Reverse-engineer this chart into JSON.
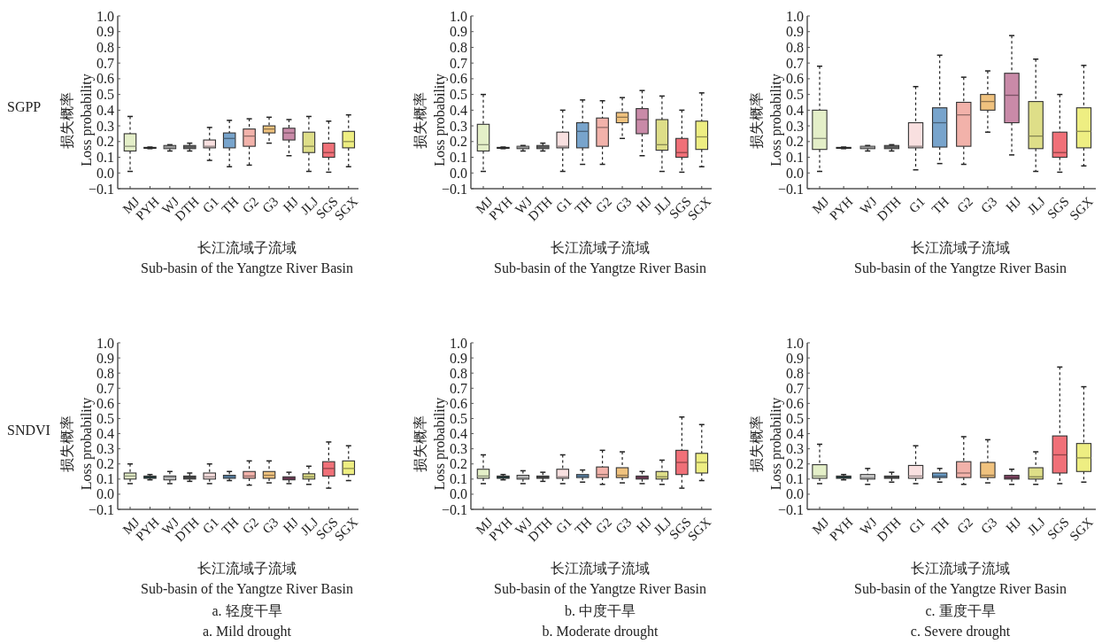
{
  "chart_data": [
    {
      "type": "box",
      "subtitle": "SGPP",
      "ylabel": "损失概率\nLoss probability",
      "xlabel": "长江流域子流域\nSub-basin of the Yangtze River Basin",
      "categories": [
        "MJ",
        "PYH",
        "WJ",
        "DTH",
        "G1",
        "TH",
        "G2",
        "G3",
        "HJ",
        "JLJ",
        "SGS",
        "SGX"
      ],
      "colors": [
        "#e4efc8",
        "#3c3c3c",
        "#cfcfcf",
        "#7d7d7d",
        "#f9e0e0",
        "#78a4cc",
        "#f2b2aa",
        "#f0c27e",
        "#c98aa8",
        "#dede88",
        "#f07078",
        "#eeee82"
      ],
      "ylim": [
        -0.1,
        1.0
      ],
      "yticks": [
        {
          "value": -0.1,
          "label": "−0.1"
        },
        {
          "value": 0,
          "label": "0.0"
        },
        0.1,
        0.2,
        0.3,
        0.4,
        0.5,
        0.6,
        0.7,
        0.8,
        0.9,
        {
          "value": 1,
          "label": "1.0"
        }
      ],
      "boxes": [
        {
          "low": 0.01,
          "q1": 0.14,
          "median": 0.17,
          "q3": 0.25,
          "high": 0.36
        },
        {
          "low": 0.155,
          "q1": 0.158,
          "median": 0.16,
          "q3": 0.163,
          "high": 0.165
        },
        {
          "low": 0.14,
          "q1": 0.155,
          "median": 0.165,
          "q3": 0.175,
          "high": 0.18
        },
        {
          "low": 0.14,
          "q1": 0.155,
          "median": 0.165,
          "q3": 0.175,
          "high": 0.19
        },
        {
          "low": 0.08,
          "q1": 0.16,
          "median": 0.17,
          "q3": 0.21,
          "high": 0.29
        },
        {
          "low": 0.04,
          "q1": 0.16,
          "median": 0.22,
          "q3": 0.255,
          "high": 0.335
        },
        {
          "low": 0.05,
          "q1": 0.17,
          "median": 0.235,
          "q3": 0.28,
          "high": 0.345
        },
        {
          "low": 0.19,
          "q1": 0.255,
          "median": 0.28,
          "q3": 0.3,
          "high": 0.355
        },
        {
          "low": 0.11,
          "q1": 0.21,
          "median": 0.255,
          "q3": 0.285,
          "high": 0.34
        },
        {
          "low": 0.01,
          "q1": 0.13,
          "median": 0.17,
          "q3": 0.26,
          "high": 0.36
        },
        {
          "low": 0.005,
          "q1": 0.1,
          "median": 0.13,
          "q3": 0.19,
          "high": 0.33
        },
        {
          "low": 0.04,
          "q1": 0.16,
          "median": 0.2,
          "q3": 0.265,
          "high": 0.37
        }
      ]
    },
    {
      "type": "box",
      "ylabel": "损失概率\nLoss probability",
      "xlabel": "长江流域子流域\nSub-basin of the Yangtze River Basin",
      "categories": [
        "MJ",
        "PYH",
        "WJ",
        "DTH",
        "G1",
        "TH",
        "G2",
        "G3",
        "HJ",
        "JLJ",
        "SGS",
        "SGX"
      ],
      "colors": [
        "#e4efc8",
        "#3c3c3c",
        "#cfcfcf",
        "#7d7d7d",
        "#f9e0e0",
        "#78a4cc",
        "#f2b2aa",
        "#f0c27e",
        "#c98aa8",
        "#dede88",
        "#f07078",
        "#eeee82"
      ],
      "ylim": [
        -0.1,
        1.0
      ],
      "yticks": [
        {
          "value": -0.1,
          "label": "−0.1"
        },
        {
          "value": 0,
          "label": "0.0"
        },
        0.1,
        0.2,
        0.3,
        0.4,
        0.5,
        0.6,
        0.7,
        0.8,
        0.9,
        {
          "value": 1,
          "label": "1.0"
        }
      ],
      "boxes": [
        {
          "low": 0.01,
          "q1": 0.14,
          "median": 0.18,
          "q3": 0.31,
          "high": 0.5
        },
        {
          "low": 0.155,
          "q1": 0.158,
          "median": 0.16,
          "q3": 0.163,
          "high": 0.165
        },
        {
          "low": 0.14,
          "q1": 0.155,
          "median": 0.165,
          "q3": 0.17,
          "high": 0.175
        },
        {
          "low": 0.14,
          "q1": 0.155,
          "median": 0.165,
          "q3": 0.175,
          "high": 0.19
        },
        {
          "low": 0.01,
          "q1": 0.16,
          "median": 0.17,
          "q3": 0.26,
          "high": 0.4
        },
        {
          "low": 0.055,
          "q1": 0.16,
          "median": 0.265,
          "q3": 0.32,
          "high": 0.465
        },
        {
          "low": 0.055,
          "q1": 0.17,
          "median": 0.29,
          "q3": 0.35,
          "high": 0.46
        },
        {
          "low": 0.22,
          "q1": 0.32,
          "median": 0.355,
          "q3": 0.385,
          "high": 0.48
        },
        {
          "low": 0.11,
          "q1": 0.25,
          "median": 0.34,
          "q3": 0.41,
          "high": 0.525
        },
        {
          "low": 0.01,
          "q1": 0.145,
          "median": 0.18,
          "q3": 0.34,
          "high": 0.49
        },
        {
          "low": 0.005,
          "q1": 0.1,
          "median": 0.13,
          "q3": 0.22,
          "high": 0.4
        },
        {
          "low": 0.04,
          "q1": 0.15,
          "median": 0.23,
          "q3": 0.33,
          "high": 0.51
        }
      ]
    },
    {
      "type": "box",
      "ylabel": "损失概率\nLoss probability",
      "xlabel": "长江流域子流域\nSub-basin of the Yangtze River Basin",
      "categories": [
        "MJ",
        "PYH",
        "WJ",
        "DTH",
        "G1",
        "TH",
        "G2",
        "G3",
        "HJ",
        "JLJ",
        "SGS",
        "SGX"
      ],
      "colors": [
        "#e4efc8",
        "#3c3c3c",
        "#cfcfcf",
        "#7d7d7d",
        "#f9e0e0",
        "#78a4cc",
        "#f2b2aa",
        "#f0c27e",
        "#c98aa8",
        "#dede88",
        "#f07078",
        "#eeee82"
      ],
      "ylim": [
        -0.1,
        1.0
      ],
      "yticks": [
        {
          "value": -0.1,
          "label": "−0.1"
        },
        {
          "value": 0,
          "label": "0.0"
        },
        0.1,
        0.2,
        0.3,
        0.4,
        0.5,
        0.6,
        0.7,
        0.8,
        0.9,
        {
          "value": 1,
          "label": "1.0"
        }
      ],
      "boxes": [
        {
          "low": 0.01,
          "q1": 0.15,
          "median": 0.22,
          "q3": 0.4,
          "high": 0.68
        },
        {
          "low": 0.155,
          "q1": 0.158,
          "median": 0.16,
          "q3": 0.163,
          "high": 0.165
        },
        {
          "low": 0.14,
          "q1": 0.155,
          "median": 0.165,
          "q3": 0.17,
          "high": 0.175
        },
        {
          "low": 0.14,
          "q1": 0.155,
          "median": 0.165,
          "q3": 0.175,
          "high": 0.18
        },
        {
          "low": 0.02,
          "q1": 0.16,
          "median": 0.17,
          "q3": 0.32,
          "high": 0.55
        },
        {
          "low": 0.06,
          "q1": 0.165,
          "median": 0.32,
          "q3": 0.415,
          "high": 0.75
        },
        {
          "low": 0.055,
          "q1": 0.17,
          "median": 0.37,
          "q3": 0.45,
          "high": 0.61
        },
        {
          "low": 0.26,
          "q1": 0.4,
          "median": 0.455,
          "q3": 0.5,
          "high": 0.65
        },
        {
          "low": 0.115,
          "q1": 0.32,
          "median": 0.495,
          "q3": 0.635,
          "high": 0.875
        },
        {
          "low": 0.01,
          "q1": 0.155,
          "median": 0.235,
          "q3": 0.455,
          "high": 0.725
        },
        {
          "low": 0.005,
          "q1": 0.1,
          "median": 0.13,
          "q3": 0.26,
          "high": 0.5
        },
        {
          "low": 0.045,
          "q1": 0.16,
          "median": 0.265,
          "q3": 0.415,
          "high": 0.685
        }
      ]
    },
    {
      "type": "box",
      "subtitle": "SNDVI",
      "ylabel": "损失概率\nLoss probability",
      "xlabel": "长江流域子流域\nSub-basin of the Yangtze River Basin",
      "annotations": [
        "a. 轻度干旱",
        "a. Mild drought"
      ],
      "categories": [
        "MJ",
        "PYH",
        "WJ",
        "DTH",
        "G1",
        "TH",
        "G2",
        "G3",
        "HJ",
        "JLJ",
        "SGS",
        "SGX"
      ],
      "colors": [
        "#e4efc8",
        "#2f4a4a",
        "#d8d8d8",
        "#5a5a5a",
        "#f9e0e0",
        "#6ea0cc",
        "#f2b2aa",
        "#f0c27e",
        "#8a4a6a",
        "#dede88",
        "#f07078",
        "#eeee82"
      ],
      "ylim": [
        -0.1,
        1.0
      ],
      "yticks": [
        {
          "value": -0.1,
          "label": "−0.1"
        },
        {
          "value": 0,
          "label": "0.0"
        },
        0.1,
        0.2,
        0.3,
        0.4,
        0.5,
        0.6,
        0.7,
        0.8,
        0.9,
        {
          "value": 1,
          "label": "1.0"
        }
      ],
      "boxes": [
        {
          "low": 0.07,
          "q1": 0.1,
          "median": 0.12,
          "q3": 0.14,
          "high": 0.2
        },
        {
          "low": 0.095,
          "q1": 0.105,
          "median": 0.11,
          "q3": 0.12,
          "high": 0.13
        },
        {
          "low": 0.07,
          "q1": 0.095,
          "median": 0.11,
          "q3": 0.12,
          "high": 0.15
        },
        {
          "low": 0.085,
          "q1": 0.1,
          "median": 0.11,
          "q3": 0.12,
          "high": 0.14
        },
        {
          "low": 0.07,
          "q1": 0.1,
          "median": 0.115,
          "q3": 0.14,
          "high": 0.2
        },
        {
          "low": 0.09,
          "q1": 0.105,
          "median": 0.115,
          "q3": 0.125,
          "high": 0.15
        },
        {
          "low": 0.06,
          "q1": 0.105,
          "median": 0.12,
          "q3": 0.15,
          "high": 0.22
        },
        {
          "low": 0.075,
          "q1": 0.105,
          "median": 0.125,
          "q3": 0.15,
          "high": 0.22
        },
        {
          "low": 0.07,
          "q1": 0.095,
          "median": 0.105,
          "q3": 0.115,
          "high": 0.145
        },
        {
          "low": 0.065,
          "q1": 0.1,
          "median": 0.115,
          "q3": 0.135,
          "high": 0.185
        },
        {
          "low": 0.04,
          "q1": 0.12,
          "median": 0.17,
          "q3": 0.215,
          "high": 0.345
        },
        {
          "low": 0.09,
          "q1": 0.13,
          "median": 0.17,
          "q3": 0.22,
          "high": 0.32
        }
      ]
    },
    {
      "type": "box",
      "ylabel": "损失概率\nLoss probability",
      "xlabel": "长江流域子流域\nSub-basin of the Yangtze River Basin",
      "annotations": [
        "b. 中度干旱",
        "b. Moderate drought"
      ],
      "categories": [
        "MJ",
        "PYH",
        "WJ",
        "DTH",
        "G1",
        "TH",
        "G2",
        "G3",
        "HJ",
        "JLJ",
        "SGS",
        "SGX"
      ],
      "colors": [
        "#e4efc8",
        "#2f4a4a",
        "#d8d8d8",
        "#5a5a5a",
        "#f9e0e0",
        "#6ea0cc",
        "#f2b2aa",
        "#f0c27e",
        "#8a4a6a",
        "#dede88",
        "#f07078",
        "#eeee82"
      ],
      "ylim": [
        -0.1,
        1.0
      ],
      "yticks": [
        {
          "value": -0.1,
          "label": "−0.1"
        },
        {
          "value": 0,
          "label": "0.0"
        },
        0.1,
        0.2,
        0.3,
        0.4,
        0.5,
        0.6,
        0.7,
        0.8,
        0.9,
        {
          "value": 1,
          "label": "1.0"
        }
      ],
      "boxes": [
        {
          "low": 0.07,
          "q1": 0.105,
          "median": 0.12,
          "q3": 0.165,
          "high": 0.26
        },
        {
          "low": 0.095,
          "q1": 0.105,
          "median": 0.11,
          "q3": 0.12,
          "high": 0.13
        },
        {
          "low": 0.07,
          "q1": 0.1,
          "median": 0.11,
          "q3": 0.125,
          "high": 0.155
        },
        {
          "low": 0.085,
          "q1": 0.105,
          "median": 0.11,
          "q3": 0.12,
          "high": 0.145
        },
        {
          "low": 0.07,
          "q1": 0.105,
          "median": 0.115,
          "q3": 0.165,
          "high": 0.26
        },
        {
          "low": 0.08,
          "q1": 0.11,
          "median": 0.12,
          "q3": 0.13,
          "high": 0.16
        },
        {
          "low": 0.065,
          "q1": 0.11,
          "median": 0.13,
          "q3": 0.18,
          "high": 0.29
        },
        {
          "low": 0.075,
          "q1": 0.11,
          "median": 0.125,
          "q3": 0.175,
          "high": 0.28
        },
        {
          "low": 0.07,
          "q1": 0.1,
          "median": 0.11,
          "q3": 0.12,
          "high": 0.15
        },
        {
          "low": 0.065,
          "q1": 0.1,
          "median": 0.115,
          "q3": 0.15,
          "high": 0.225
        },
        {
          "low": 0.04,
          "q1": 0.13,
          "median": 0.21,
          "q3": 0.29,
          "high": 0.51
        },
        {
          "low": 0.09,
          "q1": 0.14,
          "median": 0.21,
          "q3": 0.27,
          "high": 0.46
        }
      ]
    },
    {
      "type": "box",
      "ylabel": "损失概率\nLoss probability",
      "xlabel": "长江流域子流域\nSub-basin of the Yangtze River Basin",
      "annotations": [
        "c. 重度干旱",
        "c. Severe drought"
      ],
      "categories": [
        "MJ",
        "PYH",
        "WJ",
        "DTH",
        "G1",
        "TH",
        "G2",
        "G3",
        "HJ",
        "JLJ",
        "SGS",
        "SGX"
      ],
      "colors": [
        "#e4efc8",
        "#2f4a4a",
        "#d8d8d8",
        "#5a5a5a",
        "#f9e0e0",
        "#6ea0cc",
        "#f2b2aa",
        "#f0c27e",
        "#8a4a6a",
        "#dede88",
        "#f07078",
        "#eeee82"
      ],
      "ylim": [
        -0.1,
        1.0
      ],
      "yticks": [
        {
          "value": -0.1,
          "label": "−0.1"
        },
        {
          "value": 0,
          "label": "0.0"
        },
        0.1,
        0.2,
        0.3,
        0.4,
        0.5,
        0.6,
        0.7,
        0.8,
        0.9,
        {
          "value": 1,
          "label": "1.0"
        }
      ],
      "boxes": [
        {
          "low": 0.07,
          "q1": 0.105,
          "median": 0.12,
          "q3": 0.195,
          "high": 0.33
        },
        {
          "low": 0.095,
          "q1": 0.105,
          "median": 0.11,
          "q3": 0.12,
          "high": 0.13
        },
        {
          "low": 0.065,
          "q1": 0.1,
          "median": 0.11,
          "q3": 0.13,
          "high": 0.17
        },
        {
          "low": 0.08,
          "q1": 0.105,
          "median": 0.11,
          "q3": 0.12,
          "high": 0.145
        },
        {
          "low": 0.07,
          "q1": 0.105,
          "median": 0.12,
          "q3": 0.19,
          "high": 0.32
        },
        {
          "low": 0.08,
          "q1": 0.11,
          "median": 0.12,
          "q3": 0.14,
          "high": 0.17
        },
        {
          "low": 0.065,
          "q1": 0.11,
          "median": 0.14,
          "q3": 0.215,
          "high": 0.38
        },
        {
          "low": 0.075,
          "q1": 0.11,
          "median": 0.125,
          "q3": 0.21,
          "high": 0.36
        },
        {
          "low": 0.065,
          "q1": 0.1,
          "median": 0.11,
          "q3": 0.125,
          "high": 0.165
        },
        {
          "low": 0.065,
          "q1": 0.1,
          "median": 0.115,
          "q3": 0.175,
          "high": 0.28
        },
        {
          "low": 0.07,
          "q1": 0.14,
          "median": 0.26,
          "q3": 0.385,
          "high": 0.84
        },
        {
          "low": 0.08,
          "q1": 0.15,
          "median": 0.24,
          "q3": 0.335,
          "high": 0.71
        }
      ]
    }
  ]
}
